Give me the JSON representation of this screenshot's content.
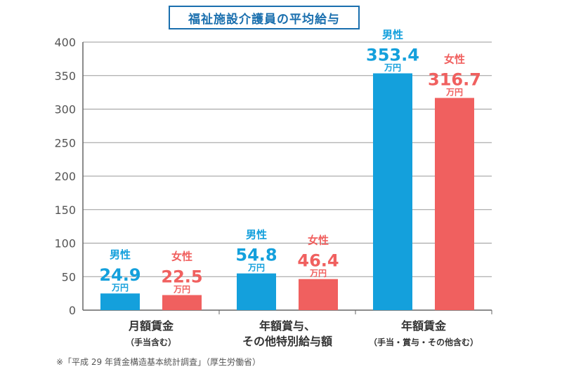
{
  "chart_data": {
    "type": "bar",
    "title": "福祉施設介護員の平均給与",
    "ylim": [
      0,
      400
    ],
    "yticks": [
      0,
      50,
      100,
      150,
      200,
      250,
      300,
      350,
      400
    ],
    "grid": true,
    "categories": [
      {
        "line1": "月額賃金",
        "line2": "（手当含む）"
      },
      {
        "line1": "年額賞与、",
        "line2": "その他特別給与額"
      },
      {
        "line1": "年額賃金",
        "line2": "（手当・賞与・その他含む）"
      }
    ],
    "unit": "万円",
    "series": [
      {
        "name": "男性",
        "color": "#14a0dc",
        "values": [
          24.9,
          54.8,
          353.4
        ],
        "labels": [
          "24.9",
          "54.8",
          "353.4"
        ]
      },
      {
        "name": "女性",
        "color": "#f0605f",
        "values": [
          22.5,
          46.4,
          316.7
        ],
        "labels": [
          "22.5",
          "46.4",
          "316.7"
        ]
      }
    ]
  },
  "source_note": "※「平成 29 年賃金構造基本統計調査」（厚生労働省）"
}
